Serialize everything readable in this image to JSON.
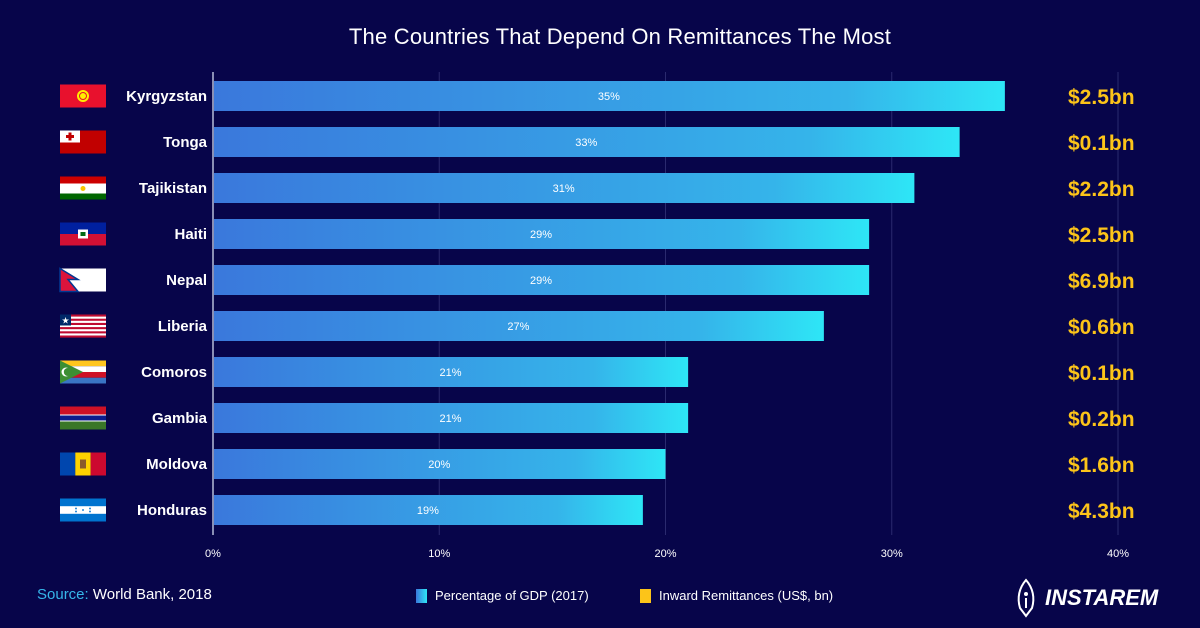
{
  "chart_data": {
    "type": "bar",
    "orientation": "horizontal",
    "title": "The Countries That Depend On Remittances The Most",
    "categories": [
      "Kyrgyzstan",
      "Tonga",
      "Tajikistan",
      "Haiti",
      "Nepal",
      "Liberia",
      "Comoros",
      "Gambia",
      "Moldova",
      "Honduras"
    ],
    "series": [
      {
        "name": "Percentage of GDP (2017)",
        "values": [
          35,
          33,
          31,
          29,
          29,
          27,
          21,
          21,
          20,
          19
        ],
        "labels": [
          "35%",
          "33%",
          "31%",
          "29%",
          "29%",
          "27%",
          "21%",
          "21%",
          "20%",
          "19%"
        ],
        "color_start": "#3a78dc",
        "color_end": "#2ee6f6"
      },
      {
        "name": "Inward Remittances (US$, bn)",
        "values": [
          2.5,
          0.1,
          2.2,
          2.5,
          6.9,
          0.6,
          0.1,
          0.2,
          1.6,
          4.3
        ],
        "labels": [
          "$2.5bn",
          "$0.1bn",
          "$2.2bn",
          "$2.5bn",
          "$6.9bn",
          "$0.6bn",
          "$0.1bn",
          "$0.2bn",
          "$1.6bn",
          "$4.3bn"
        ],
        "color": "#fcc419"
      }
    ],
    "xlim": [
      0,
      40
    ],
    "xticks": [
      "0%",
      "10%",
      "20%",
      "30%",
      "40%"
    ],
    "grid": true,
    "legend": "bottom"
  },
  "flags": [
    "kyrgyzstan-flag",
    "tonga-flag",
    "tajikistan-flag",
    "haiti-flag",
    "nepal-flag",
    "liberia-flag",
    "comoros-flag",
    "gambia-flag",
    "moldova-flag",
    "honduras-flag"
  ],
  "source": {
    "label": "Source:",
    "text": "World Bank, 2018"
  },
  "brand": "INSTAREM",
  "colors": {
    "background": "#07054a",
    "accent": "#36b6ea"
  }
}
